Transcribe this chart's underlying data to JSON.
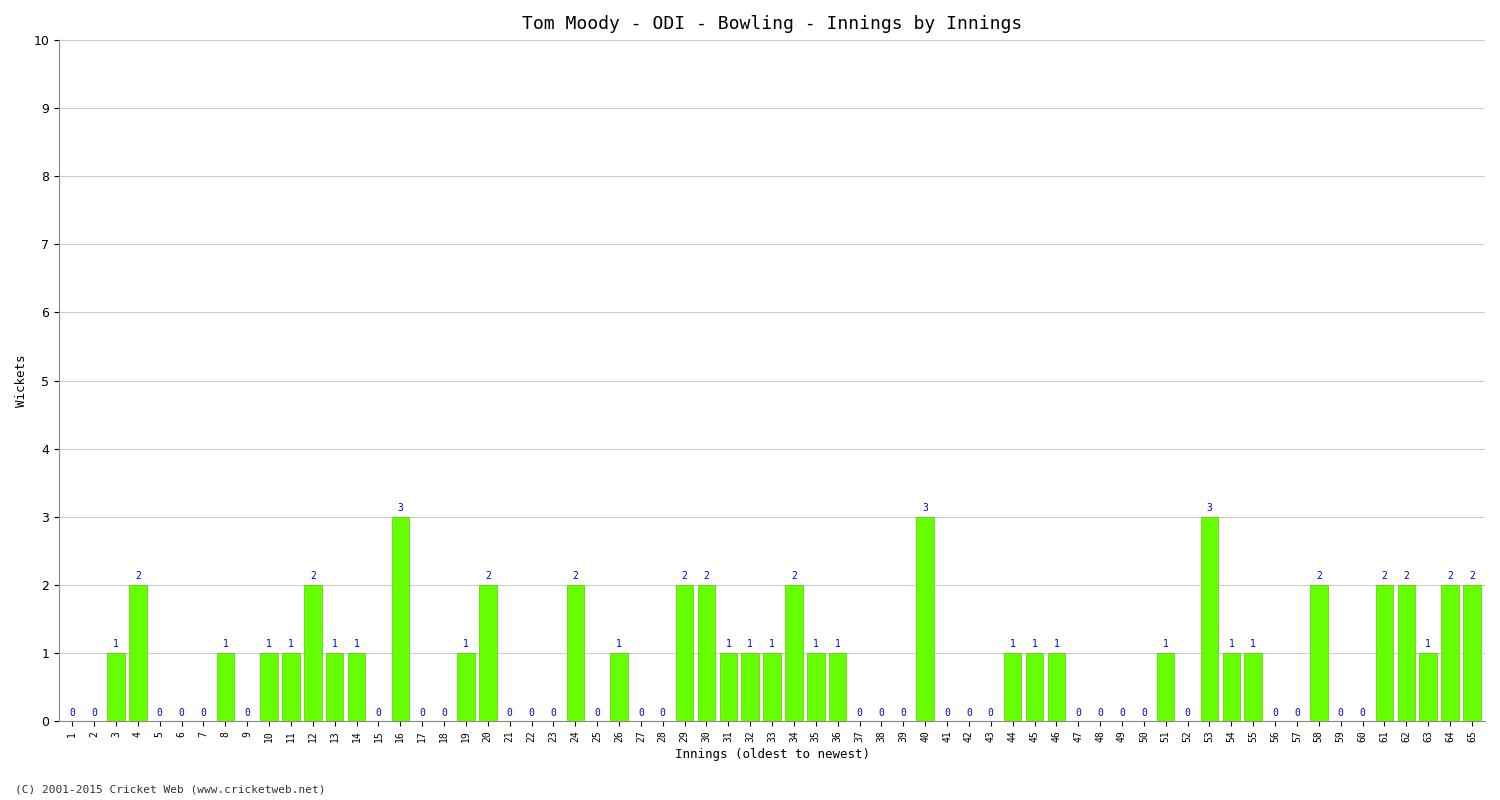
{
  "title": "Tom Moody - ODI - Bowling - Innings by Innings",
  "ylabel": "Wickets",
  "xlabel": "Innings (oldest to newest)",
  "copyright": "(C) 2001-2015 Cricket Web (www.cricketweb.net)",
  "ylim": [
    0,
    10
  ],
  "yticks": [
    0,
    1,
    2,
    3,
    4,
    5,
    6,
    7,
    8,
    9,
    10
  ],
  "bar_color": "#66ff00",
  "bar_edge_color": "#55cc00",
  "label_color": "#0000cc",
  "background_color": "#ffffff",
  "grid_color": "#cccccc",
  "innings_labels": [
    "1",
    "2",
    "3",
    "4",
    "5",
    "6",
    "7",
    "8",
    "9",
    "10",
    "11",
    "12",
    "13",
    "14",
    "15",
    "16",
    "17",
    "18",
    "19",
    "20",
    "21",
    "22",
    "23",
    "24",
    "25",
    "26",
    "27",
    "28",
    "29",
    "30",
    "31",
    "32",
    "33",
    "34",
    "35",
    "36",
    "37",
    "38",
    "39",
    "40",
    "41",
    "42",
    "43",
    "44",
    "45",
    "46",
    "47",
    "48",
    "49",
    "50",
    "51",
    "52",
    "53",
    "54",
    "55",
    "56",
    "57",
    "58",
    "59",
    "60",
    "61",
    "62",
    "63",
    "64",
    "65"
  ],
  "wickets": [
    0,
    0,
    1,
    2,
    0,
    0,
    0,
    1,
    0,
    1,
    1,
    2,
    1,
    1,
    0,
    3,
    0,
    0,
    1,
    2,
    0,
    0,
    0,
    2,
    0,
    1,
    0,
    0,
    2,
    2,
    1,
    1,
    1,
    2,
    1,
    1,
    0,
    0,
    0,
    3,
    0,
    0,
    0,
    1,
    1,
    1,
    0,
    0,
    0,
    0,
    1,
    0,
    3,
    1,
    1,
    0,
    0,
    2,
    0,
    0,
    2,
    2,
    1,
    2,
    2
  ]
}
